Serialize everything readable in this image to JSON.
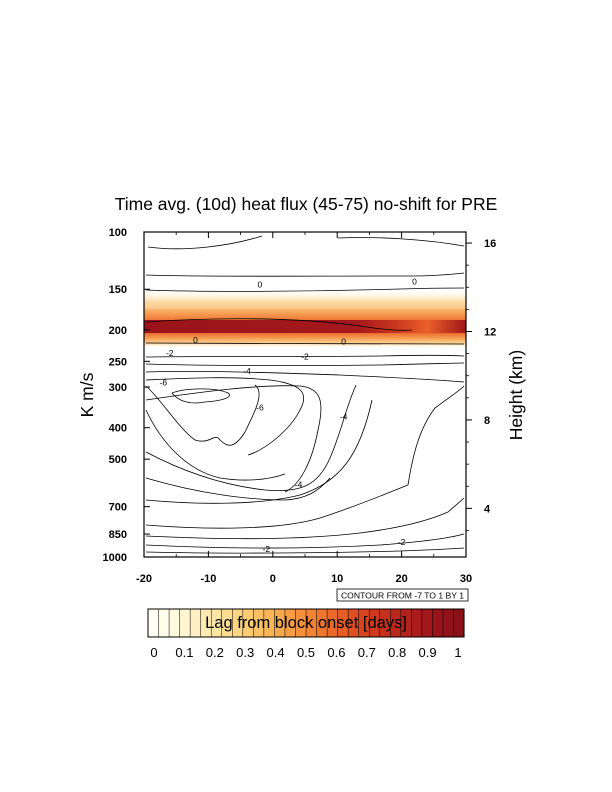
{
  "chart_data": {
    "type": "contour",
    "title": "Time avg. (10d) heat flux (45-75) no-shift for PRE",
    "xlabel": "",
    "ylabel_left": "K m/s",
    "ylabel_right": "Height (km)",
    "x_ticks": [
      -20,
      -10,
      0,
      10,
      20,
      30
    ],
    "xlim": [
      -20,
      30
    ],
    "y_ticks_left": [
      100,
      150,
      200,
      250,
      300,
      400,
      500,
      700,
      850,
      1000
    ],
    "ylim_pressure": [
      1000,
      100
    ],
    "y_scale": "log",
    "y_ticks_right": [
      4,
      8,
      12,
      16
    ],
    "contour_info": "CONTOUR FROM -7 TO 1 BY 1",
    "colorbar": {
      "label": "Lag from block onset [days]",
      "tick_labels": [
        "0",
        "0.1",
        "0.2",
        "0.3",
        "0.4",
        "0.5",
        "0.6",
        "0.7",
        "0.8",
        "0.9",
        "1"
      ],
      "range": [
        0,
        1
      ],
      "colors": [
        "#fffff5",
        "#fff6d3",
        "#fde7a6",
        "#fbcf76",
        "#f9ae50",
        "#f48a38",
        "#ea6427",
        "#d5401f",
        "#bb261c",
        "#a0161b",
        "#8a1019"
      ]
    },
    "contour_labels": [
      {
        "text": "0",
        "x": -2,
        "p": 145
      },
      {
        "text": "0",
        "x": 22,
        "p": 142
      },
      {
        "text": "0",
        "x": -12,
        "p": 215
      },
      {
        "text": "0",
        "x": 11,
        "p": 217
      },
      {
        "text": "-2",
        "x": -16,
        "p": 236
      },
      {
        "text": "-2",
        "x": 5,
        "p": 242
      },
      {
        "text": "-4",
        "x": -4,
        "p": 268
      },
      {
        "text": "-6",
        "x": -17,
        "p": 290
      },
      {
        "text": "-6",
        "x": -2,
        "p": 347
      },
      {
        "text": "-4",
        "x": 11,
        "p": 370
      },
      {
        "text": "-4",
        "x": 4,
        "p": 598
      },
      {
        "text": "-2",
        "x": 20,
        "p": 900
      },
      {
        "text": "-2",
        "x": -1,
        "p": 945
      }
    ]
  }
}
